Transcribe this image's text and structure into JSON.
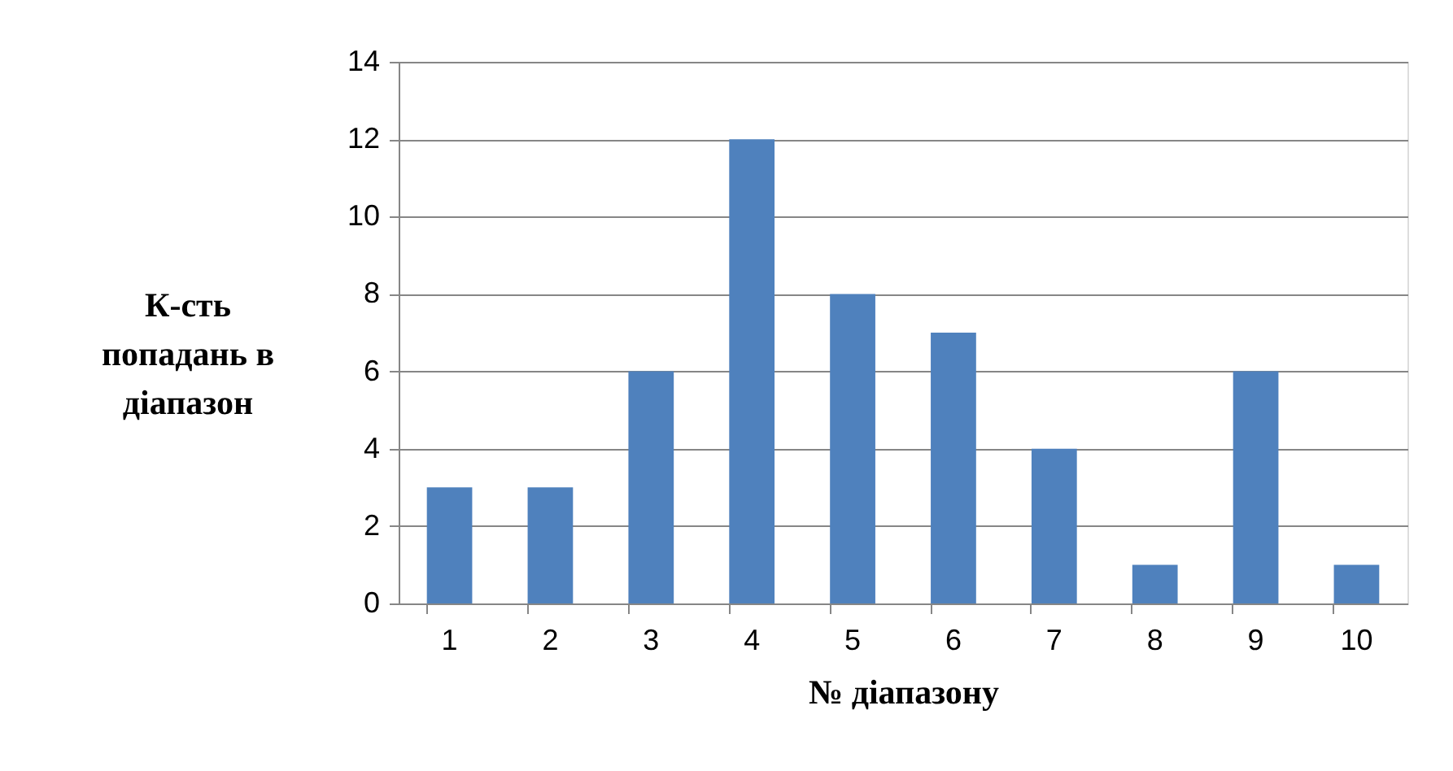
{
  "chart_data": {
    "type": "bar",
    "xlabel": "№ діапазону",
    "ylabel": "К-сть\nпопадань в\nдіапазон",
    "categories": [
      "1",
      "2",
      "3",
      "4",
      "5",
      "6",
      "7",
      "8",
      "9",
      "10"
    ],
    "values": [
      3,
      3,
      6,
      12,
      8,
      7,
      4,
      1,
      6,
      1
    ],
    "color": "#4f81bd",
    "ylim": [
      0,
      14
    ],
    "yticks": [
      0,
      2,
      4,
      6,
      8,
      10,
      12,
      14
    ],
    "grid": "y"
  }
}
